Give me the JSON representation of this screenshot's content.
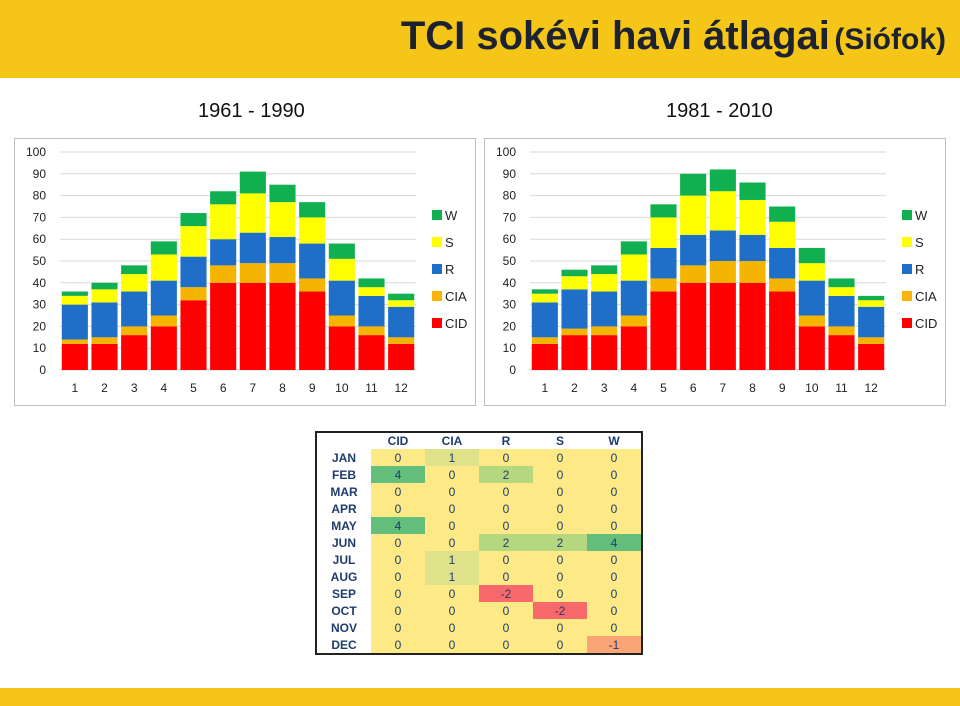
{
  "header": {
    "title_main": "TCI sokévi havi átlagai",
    "title_sub": "(Siófok)"
  },
  "colors": {
    "band": "#f5c518",
    "CID": "#ff0000",
    "CIA": "#f5b400",
    "R": "#1f6fc8",
    "S": "#ffff00",
    "W": "#10b050"
  },
  "chart_data": [
    {
      "type": "bar",
      "stacked": true,
      "title": "1961 - 1990",
      "categories": [
        "1",
        "2",
        "3",
        "4",
        "5",
        "6",
        "7",
        "8",
        "9",
        "10",
        "11",
        "12"
      ],
      "ylim": [
        0,
        100
      ],
      "yticks": [
        "0",
        "10",
        "20",
        "30",
        "40",
        "50",
        "60",
        "70",
        "80",
        "90",
        "100"
      ],
      "grid": true,
      "legend_position": "right",
      "series": [
        {
          "name": "CID",
          "values": [
            12,
            12,
            16,
            20,
            32,
            40,
            40,
            40,
            36,
            20,
            16,
            12
          ]
        },
        {
          "name": "CIA",
          "values": [
            2,
            3,
            4,
            5,
            6,
            8,
            9,
            9,
            6,
            5,
            4,
            3
          ]
        },
        {
          "name": "R",
          "values": [
            16,
            16,
            16,
            16,
            14,
            12,
            14,
            12,
            16,
            16,
            14,
            14
          ]
        },
        {
          "name": "S",
          "values": [
            4,
            6,
            8,
            12,
            14,
            16,
            18,
            16,
            12,
            10,
            4,
            3
          ]
        },
        {
          "name": "W",
          "values": [
            2,
            3,
            4,
            6,
            6,
            6,
            10,
            8,
            7,
            7,
            4,
            3
          ]
        }
      ]
    },
    {
      "type": "bar",
      "stacked": true,
      "title": "1981 - 2010",
      "categories": [
        "1",
        "2",
        "3",
        "4",
        "5",
        "6",
        "7",
        "8",
        "9",
        "10",
        "11",
        "12"
      ],
      "ylim": [
        0,
        100
      ],
      "yticks": [
        "0",
        "10",
        "20",
        "30",
        "40",
        "50",
        "60",
        "70",
        "80",
        "90",
        "100"
      ],
      "grid": true,
      "legend_position": "right",
      "series": [
        {
          "name": "CID",
          "values": [
            12,
            16,
            16,
            20,
            36,
            40,
            40,
            40,
            36,
            20,
            16,
            12
          ]
        },
        {
          "name": "CIA",
          "values": [
            3,
            3,
            4,
            5,
            6,
            8,
            10,
            10,
            6,
            5,
            4,
            3
          ]
        },
        {
          "name": "R",
          "values": [
            16,
            18,
            16,
            16,
            14,
            14,
            14,
            12,
            14,
            16,
            14,
            14
          ]
        },
        {
          "name": "S",
          "values": [
            4,
            6,
            8,
            12,
            14,
            18,
            18,
            16,
            12,
            8,
            4,
            3
          ]
        },
        {
          "name": "W",
          "values": [
            2,
            3,
            4,
            6,
            6,
            10,
            10,
            8,
            7,
            7,
            4,
            2
          ]
        }
      ]
    }
  ],
  "matrix": {
    "columns": [
      "CID",
      "CIA",
      "R",
      "S",
      "W"
    ],
    "rows": [
      {
        "month": "JAN",
        "values": [
          0,
          1,
          0,
          0,
          0
        ]
      },
      {
        "month": "FEB",
        "values": [
          4,
          0,
          2,
          0,
          0
        ]
      },
      {
        "month": "MAR",
        "values": [
          0,
          0,
          0,
          0,
          0
        ]
      },
      {
        "month": "APR",
        "values": [
          0,
          0,
          0,
          0,
          0
        ]
      },
      {
        "month": "MAY",
        "values": [
          4,
          0,
          0,
          0,
          0
        ]
      },
      {
        "month": "JUN",
        "values": [
          0,
          0,
          2,
          2,
          4
        ]
      },
      {
        "month": "JUL",
        "values": [
          0,
          1,
          0,
          0,
          0
        ]
      },
      {
        "month": "AUG",
        "values": [
          0,
          1,
          0,
          0,
          0
        ]
      },
      {
        "month": "SEP",
        "values": [
          0,
          0,
          -2,
          0,
          0
        ]
      },
      {
        "month": "OCT",
        "values": [
          0,
          0,
          0,
          -2,
          0
        ]
      },
      {
        "month": "NOV",
        "values": [
          0,
          0,
          0,
          0,
          0
        ]
      },
      {
        "month": "DEC",
        "values": [
          0,
          0,
          0,
          0,
          -1
        ]
      }
    ]
  }
}
